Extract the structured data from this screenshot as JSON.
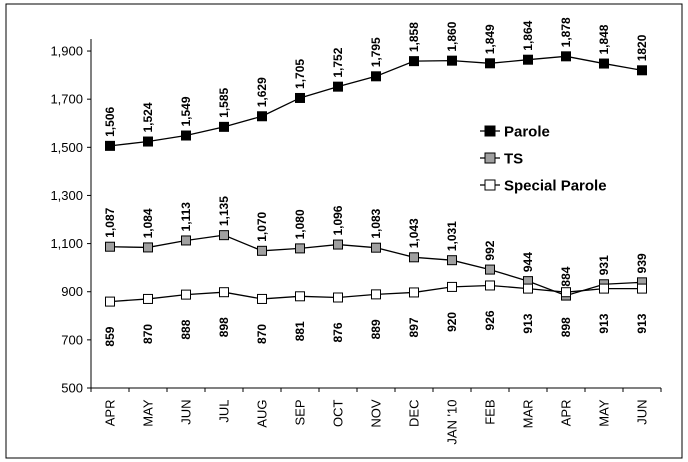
{
  "chart_data": {
    "type": "line",
    "title": "",
    "xlabel": "",
    "ylabel": "",
    "categories": [
      "APR",
      "MAY",
      "JUN",
      "JUL",
      "AUG",
      "SEP",
      "OCT",
      "NOV",
      "DEC",
      "JAN '10",
      "FEB",
      "MAR",
      "APR",
      "MAY",
      "JUN"
    ],
    "ylim": [
      500,
      1900
    ],
    "yticks": [
      "500",
      "700",
      "900",
      "1,100",
      "1,300",
      "1,500",
      "1,700",
      "1,900"
    ],
    "grid": false,
    "legend_position": "right",
    "series": [
      {
        "name": "Parole",
        "marker": "filled-square",
        "color": "#000000",
        "fill": "#000000",
        "values": [
          1506,
          1524,
          1549,
          1585,
          1629,
          1705,
          1752,
          1795,
          1858,
          1860,
          1849,
          1864,
          1878,
          1848,
          1820
        ],
        "labels": [
          "1,506",
          "1,524",
          "1,549",
          "1,585",
          "1,629",
          "1,705",
          "1,752",
          "1,795",
          "1,858",
          "1,860",
          "1,849",
          "1,864",
          "1,878",
          "1,848",
          "1820"
        ]
      },
      {
        "name": "TS",
        "marker": "gray-square",
        "color": "#000000",
        "fill": "#a0a0a0",
        "values": [
          1087,
          1084,
          1113,
          1135,
          1070,
          1080,
          1096,
          1083,
          1043,
          1031,
          992,
          944,
          884,
          931,
          939
        ],
        "labels": [
          "1,087",
          "1,084",
          "1,113",
          "1,135",
          "1,070",
          "1,080",
          "1,096",
          "1,083",
          "1,043",
          "1,031",
          "992",
          "944",
          "884",
          "931",
          "939"
        ]
      },
      {
        "name": "Special Parole",
        "marker": "hollow-square",
        "color": "#000000",
        "fill": "#ffffff",
        "values": [
          859,
          870,
          888,
          898,
          870,
          881,
          876,
          889,
          897,
          920,
          926,
          913,
          898,
          913,
          913
        ],
        "labels": [
          "859",
          "870",
          "888",
          "898",
          "870",
          "881",
          "876",
          "889",
          "897",
          "920",
          "926",
          "913",
          "898",
          "913",
          "913"
        ]
      }
    ]
  }
}
